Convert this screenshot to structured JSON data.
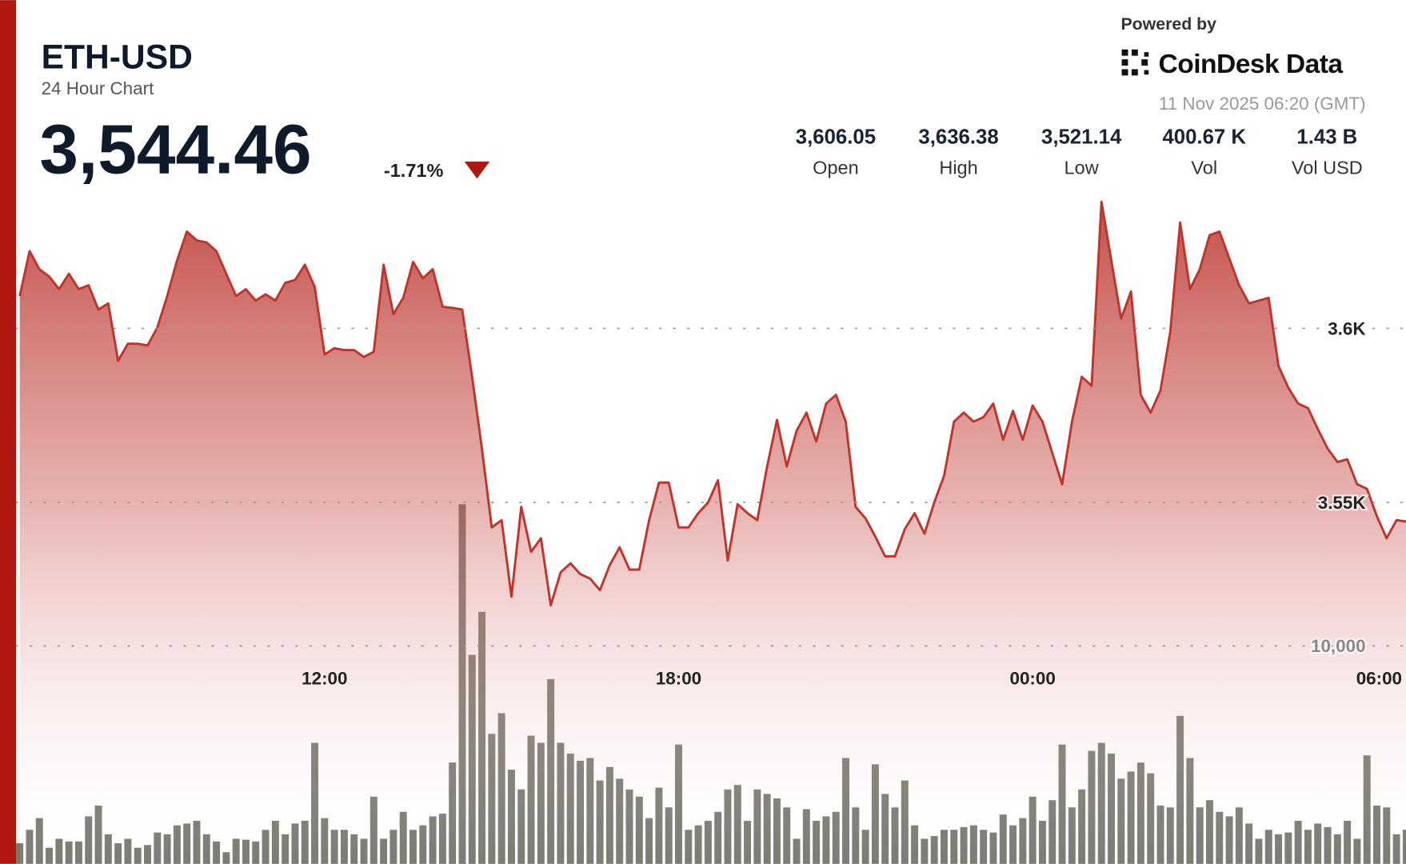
{
  "header": {
    "symbol": "ETH-USD",
    "subtitle": "24 Hour Chart",
    "price": "3,544.46",
    "change": "-1.71%",
    "powered_by": "Powered by",
    "brand": "CoinDesk Data",
    "timestamp": "11 Nov 2025 06:20 (GMT)"
  },
  "stats": [
    {
      "value": "3,606.05",
      "label": "Open"
    },
    {
      "value": "3,636.38",
      "label": "High"
    },
    {
      "value": "3,521.14",
      "label": "Low"
    },
    {
      "value": "400.67 K",
      "label": "Vol"
    },
    {
      "value": "1.43 B",
      "label": "Vol USD"
    }
  ],
  "chart_data": [
    {
      "type": "area",
      "color": "#c0342b",
      "x": [
        "06:50",
        "07:00",
        "07:10",
        "07:20",
        "07:30",
        "07:40",
        "07:50",
        "08:00",
        "08:10",
        "08:20",
        "08:30",
        "08:40",
        "08:50",
        "09:00",
        "09:10",
        "09:20",
        "09:30",
        "09:40",
        "09:50",
        "10:00",
        "10:10",
        "10:20",
        "10:30",
        "10:40",
        "10:50",
        "11:00",
        "11:10",
        "11:20",
        "11:30",
        "11:40",
        "11:50",
        "12:00",
        "12:10",
        "12:20",
        "12:30",
        "12:40",
        "12:50",
        "13:00",
        "13:10",
        "13:20",
        "13:30",
        "13:40",
        "13:50",
        "14:00",
        "14:10",
        "14:20",
        "14:30",
        "14:40",
        "14:50",
        "15:00",
        "15:10",
        "15:20",
        "15:30",
        "15:40",
        "15:50",
        "16:00",
        "16:10",
        "16:20",
        "16:30",
        "16:40",
        "16:50",
        "17:00",
        "17:10",
        "17:20",
        "17:30",
        "17:40",
        "17:50",
        "18:00",
        "18:10",
        "18:20",
        "18:30",
        "18:40",
        "18:50",
        "19:00",
        "19:10",
        "19:20",
        "19:30",
        "19:40",
        "19:50",
        "20:00",
        "20:10",
        "20:20",
        "20:30",
        "20:40",
        "20:50",
        "21:00",
        "21:10",
        "21:20",
        "21:30",
        "21:40",
        "21:50",
        "22:00",
        "22:10",
        "22:20",
        "22:30",
        "22:40",
        "22:50",
        "23:00",
        "23:10",
        "23:20",
        "23:30",
        "23:40",
        "23:50",
        "00:00",
        "00:10",
        "00:20",
        "00:30",
        "00:40",
        "00:50",
        "01:00",
        "01:10",
        "01:20",
        "01:30",
        "01:40",
        "01:50",
        "02:00",
        "02:10",
        "02:20",
        "02:30",
        "02:40",
        "02:50",
        "03:00",
        "03:10",
        "03:20",
        "03:30",
        "03:40",
        "03:50",
        "04:00",
        "04:10",
        "04:20",
        "04:30",
        "04:40",
        "04:50",
        "05:00",
        "05:10",
        "05:20",
        "05:30",
        "05:40",
        "05:50",
        "06:00",
        "06:10",
        "06:20"
      ],
      "values": [
        3609.3,
        3622.2,
        3617.0,
        3614.9,
        3611.3,
        3615.7,
        3611.3,
        3612.4,
        3605.4,
        3607.2,
        3590.7,
        3595.6,
        3595.6,
        3595.1,
        3600.3,
        3609.3,
        3619.6,
        3627.8,
        3625.3,
        3624.7,
        3622.2,
        3615.7,
        3609.3,
        3611.3,
        3608.0,
        3609.8,
        3608.0,
        3613.1,
        3613.9,
        3618.3,
        3611.9,
        3592.5,
        3594.3,
        3593.8,
        3593.8,
        3591.8,
        3593.3,
        3618.3,
        3604.1,
        3608.8,
        3619.1,
        3614.4,
        3617.0,
        3606.2,
        3605.9,
        3605.4,
        3586.1,
        3565.5,
        3542.8,
        3544.9,
        3522.9,
        3548.7,
        3535.8,
        3539.7,
        3520.4,
        3529.9,
        3532.5,
        3529.4,
        3528.1,
        3524.8,
        3532.0,
        3537.1,
        3530.7,
        3530.7,
        3544.9,
        3555.7,
        3555.7,
        3542.8,
        3542.8,
        3546.9,
        3550.0,
        3556.4,
        3533.3,
        3549.5,
        3546.9,
        3544.9,
        3560.3,
        3573.7,
        3560.3,
        3570.6,
        3575.8,
        3567.5,
        3578.4,
        3580.9,
        3573.2,
        3548.7,
        3545.4,
        3540.2,
        3534.5,
        3534.5,
        3542.3,
        3546.9,
        3541.0,
        3550.0,
        3557.7,
        3573.2,
        3575.8,
        3573.2,
        3574.5,
        3578.4,
        3568.0,
        3576.3,
        3568.0,
        3577.8,
        3573.2,
        3564.2,
        3555.2,
        3573.2,
        3586.1,
        3583.5,
        3636.4,
        3619.6,
        3602.8,
        3610.6,
        3580.9,
        3575.8,
        3582.2,
        3599.0,
        3630.4,
        3611.3,
        3617.0,
        3626.8,
        3627.8,
        3620.1,
        3612.4,
        3607.2,
        3608.0,
        3608.8,
        3589.2,
        3583.0,
        3578.4,
        3577.1,
        3571.1,
        3565.5,
        3561.6,
        3562.4,
        3555.2,
        3553.9,
        3546.1,
        3539.7,
        3544.9,
        3544.5
      ],
      "ylim": [
        3500,
        3650
      ],
      "yticks": [
        {
          "value": 3550,
          "label": "3.55K"
        },
        {
          "value": 3600,
          "label": "3.6K"
        }
      ],
      "xticks": [
        "12:00",
        "18:00",
        "00:00",
        "06:00"
      ],
      "grid": true
    },
    {
      "type": "bar",
      "color": "#76766d",
      "values": [
        946,
        1564,
        2099,
        741,
        1152,
        1029,
        1029,
        2181,
        2675,
        1358,
        946,
        1152,
        741,
        864,
        1440,
        1358,
        1769,
        1852,
        1975,
        1358,
        1029,
        535,
        1152,
        1111,
        1029,
        1564,
        1975,
        1358,
        1852,
        1975,
        5555,
        2099,
        1564,
        1564,
        1358,
        1152,
        3086,
        1152,
        1564,
        2387,
        1564,
        1769,
        2181,
        2304,
        4650,
        16501,
        9588,
        11563,
        5967,
        6913,
        4321,
        3415,
        5884,
        5555,
        8477,
        5555,
        5061,
        4732,
        4856,
        3827,
        4444,
        3909,
        3415,
        3086,
        2099,
        3498,
        2592,
        5473,
        1564,
        1769,
        1975,
        2387,
        3415,
        3621,
        1975,
        3415,
        3210,
        3004,
        2592,
        1152,
        2510,
        1975,
        2181,
        2387,
        4856,
        2592,
        1564,
        4568,
        3210,
        2592,
        3827,
        1769,
        1152,
        1276,
        1564,
        1564,
        1687,
        1769,
        1564,
        1440,
        2263,
        1769,
        2099,
        3086,
        1975,
        2922,
        5473,
        2592,
        3415,
        5185,
        5555,
        5061,
        3909,
        4238,
        4650,
        4156,
        2675,
        2592,
        6790,
        4856,
        2592,
        2922,
        2387,
        2181,
        2592,
        1852,
        1152,
        1564,
        1358,
        1440,
        1975,
        1564,
        1852,
        1687,
        1358,
        1975,
        1152,
        4979,
        2675,
        2592,
        1358,
        1564
      ],
      "ylim": [
        0,
        20000
      ],
      "yticks": [
        {
          "value": 10000,
          "label": "10,000"
        }
      ],
      "grid": true
    }
  ]
}
